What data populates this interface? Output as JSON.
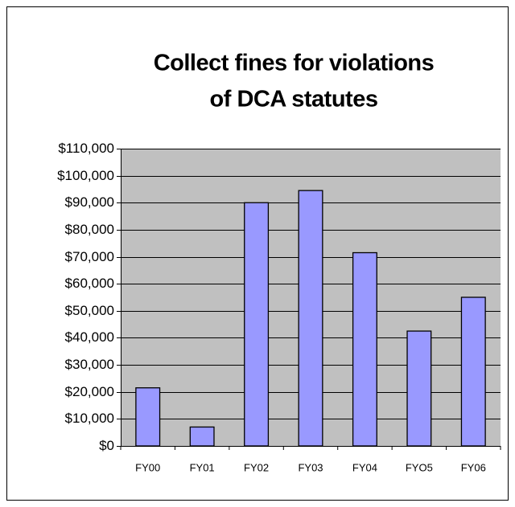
{
  "chart_data": {
    "type": "bar",
    "title": [
      "Collect fines for violations",
      "of DCA statutes"
    ],
    "categories": [
      "FY00",
      "FY01",
      "FY02",
      "FY03",
      "FY04",
      "FYO5",
      "FY06"
    ],
    "values": [
      21500,
      7000,
      90000,
      94500,
      71500,
      42500,
      55000
    ],
    "color": "#9999ff",
    "ylim": [
      0,
      110000
    ],
    "yticks": [
      {
        "value": 0,
        "label": "$0"
      },
      {
        "value": 10000,
        "label": "$10,000"
      },
      {
        "value": 20000,
        "label": "$20,000"
      },
      {
        "value": 30000,
        "label": "$30,000"
      },
      {
        "value": 40000,
        "label": "$40,000"
      },
      {
        "value": 50000,
        "label": "$50,000"
      },
      {
        "value": 60000,
        "label": "$60,000"
      },
      {
        "value": 70000,
        "label": "$70,000"
      },
      {
        "value": 80000,
        "label": "$80,000"
      },
      {
        "value": 90000,
        "label": "$90,000"
      },
      {
        "value": 100000,
        "label": "$100,000"
      },
      {
        "value": 110000,
        "label": "$110,000"
      }
    ],
    "grid": true
  }
}
